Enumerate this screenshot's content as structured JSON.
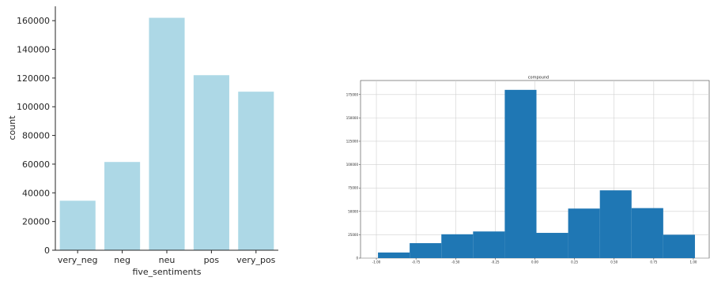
{
  "chart_data": [
    {
      "type": "bar",
      "title": "",
      "xlabel": "five_sentiments",
      "ylabel": "count",
      "categories": [
        "very_neg",
        "neg",
        "neu",
        "pos",
        "very_pos"
      ],
      "values": [
        34500,
        61500,
        162000,
        122000,
        110500
      ],
      "ylim": [
        0,
        170000
      ],
      "yticks": [
        0,
        20000,
        40000,
        60000,
        80000,
        100000,
        120000,
        140000,
        160000
      ],
      "ytick_labels": [
        "0",
        "20000",
        "40000",
        "60000",
        "80000",
        "100000",
        "120000",
        "140000",
        "160000"
      ],
      "bar_color": "#add8e6",
      "grid": false,
      "legend": "none"
    },
    {
      "type": "histogram",
      "title": "compound",
      "xlabel": "",
      "ylabel": "",
      "bins": [
        {
          "x0": -0.99,
          "x1": -0.79,
          "count": 6000
        },
        {
          "x0": -0.79,
          "x1": -0.59,
          "count": 16000
        },
        {
          "x0": -0.59,
          "x1": -0.39,
          "count": 25500
        },
        {
          "x0": -0.39,
          "x1": -0.19,
          "count": 28500
        },
        {
          "x0": -0.19,
          "x1": 0.01,
          "count": 180000
        },
        {
          "x0": 0.01,
          "x1": 0.21,
          "count": 27000
        },
        {
          "x0": 0.21,
          "x1": 0.41,
          "count": 53000
        },
        {
          "x0": 0.41,
          "x1": 0.61,
          "count": 72500
        },
        {
          "x0": 0.61,
          "x1": 0.81,
          "count": 53500
        },
        {
          "x0": 0.81,
          "x1": 1.01,
          "count": 25000
        }
      ],
      "xlim": [
        -1.1,
        1.1
      ],
      "ylim": [
        0,
        190000
      ],
      "xticks": [
        -1.0,
        -0.75,
        -0.5,
        -0.25,
        0.0,
        0.25,
        0.5,
        0.75,
        1.0
      ],
      "xtick_labels": [
        "-1.00",
        "-0.75",
        "-0.50",
        "-0.25",
        "0.00",
        "0.25",
        "0.50",
        "0.75",
        "1.00"
      ],
      "yticks": [
        0,
        25000,
        50000,
        75000,
        100000,
        125000,
        150000,
        175000
      ],
      "ytick_labels": [
        "0",
        "25000",
        "50000",
        "75000",
        "100000",
        "125000",
        "150000",
        "175000"
      ],
      "bar_color": "#1f77b4",
      "grid": true,
      "legend": "none"
    }
  ]
}
